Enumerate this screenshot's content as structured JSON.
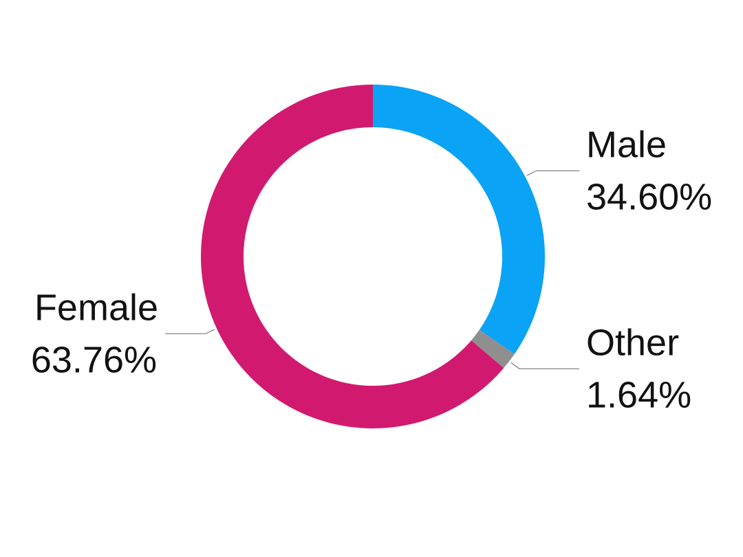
{
  "chart_data": {
    "type": "donut",
    "categories": [
      "Male",
      "Other",
      "Female"
    ],
    "values": [
      34.6,
      1.64,
      63.76
    ],
    "value_labels": [
      "34.60%",
      "1.64%",
      "63.76%"
    ],
    "colors": [
      "#0aa3f5",
      "#8f8f8f",
      "#d11a6f"
    ]
  }
}
